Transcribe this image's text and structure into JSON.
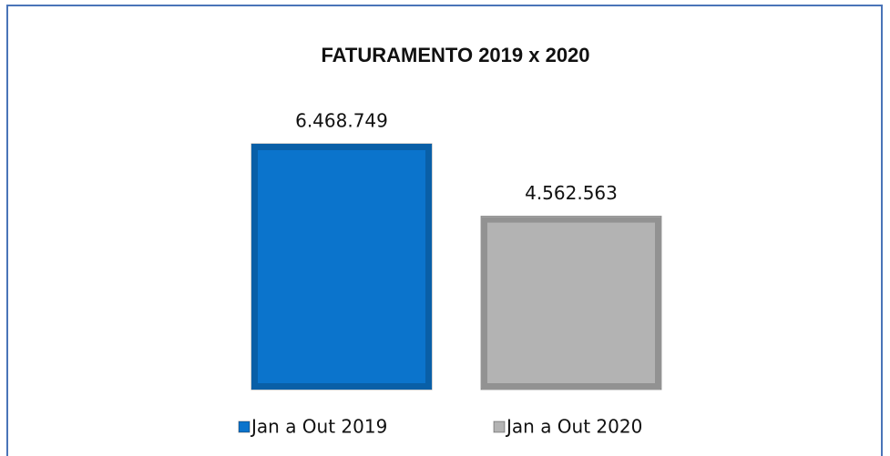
{
  "chart_data": {
    "type": "bar",
    "title": "FATURAMENTO 2019 x 2020",
    "categories": [
      null
    ],
    "series": [
      {
        "name": "Jan a Out 2019",
        "color": "#0b74cc",
        "values": [
          6468749
        ],
        "value_labels": [
          "6.468.749"
        ]
      },
      {
        "name": "Jan a Out 2020",
        "color": "#b3b3b3",
        "values": [
          4562563
        ],
        "value_labels": [
          "4.562.563"
        ]
      }
    ]
  }
}
